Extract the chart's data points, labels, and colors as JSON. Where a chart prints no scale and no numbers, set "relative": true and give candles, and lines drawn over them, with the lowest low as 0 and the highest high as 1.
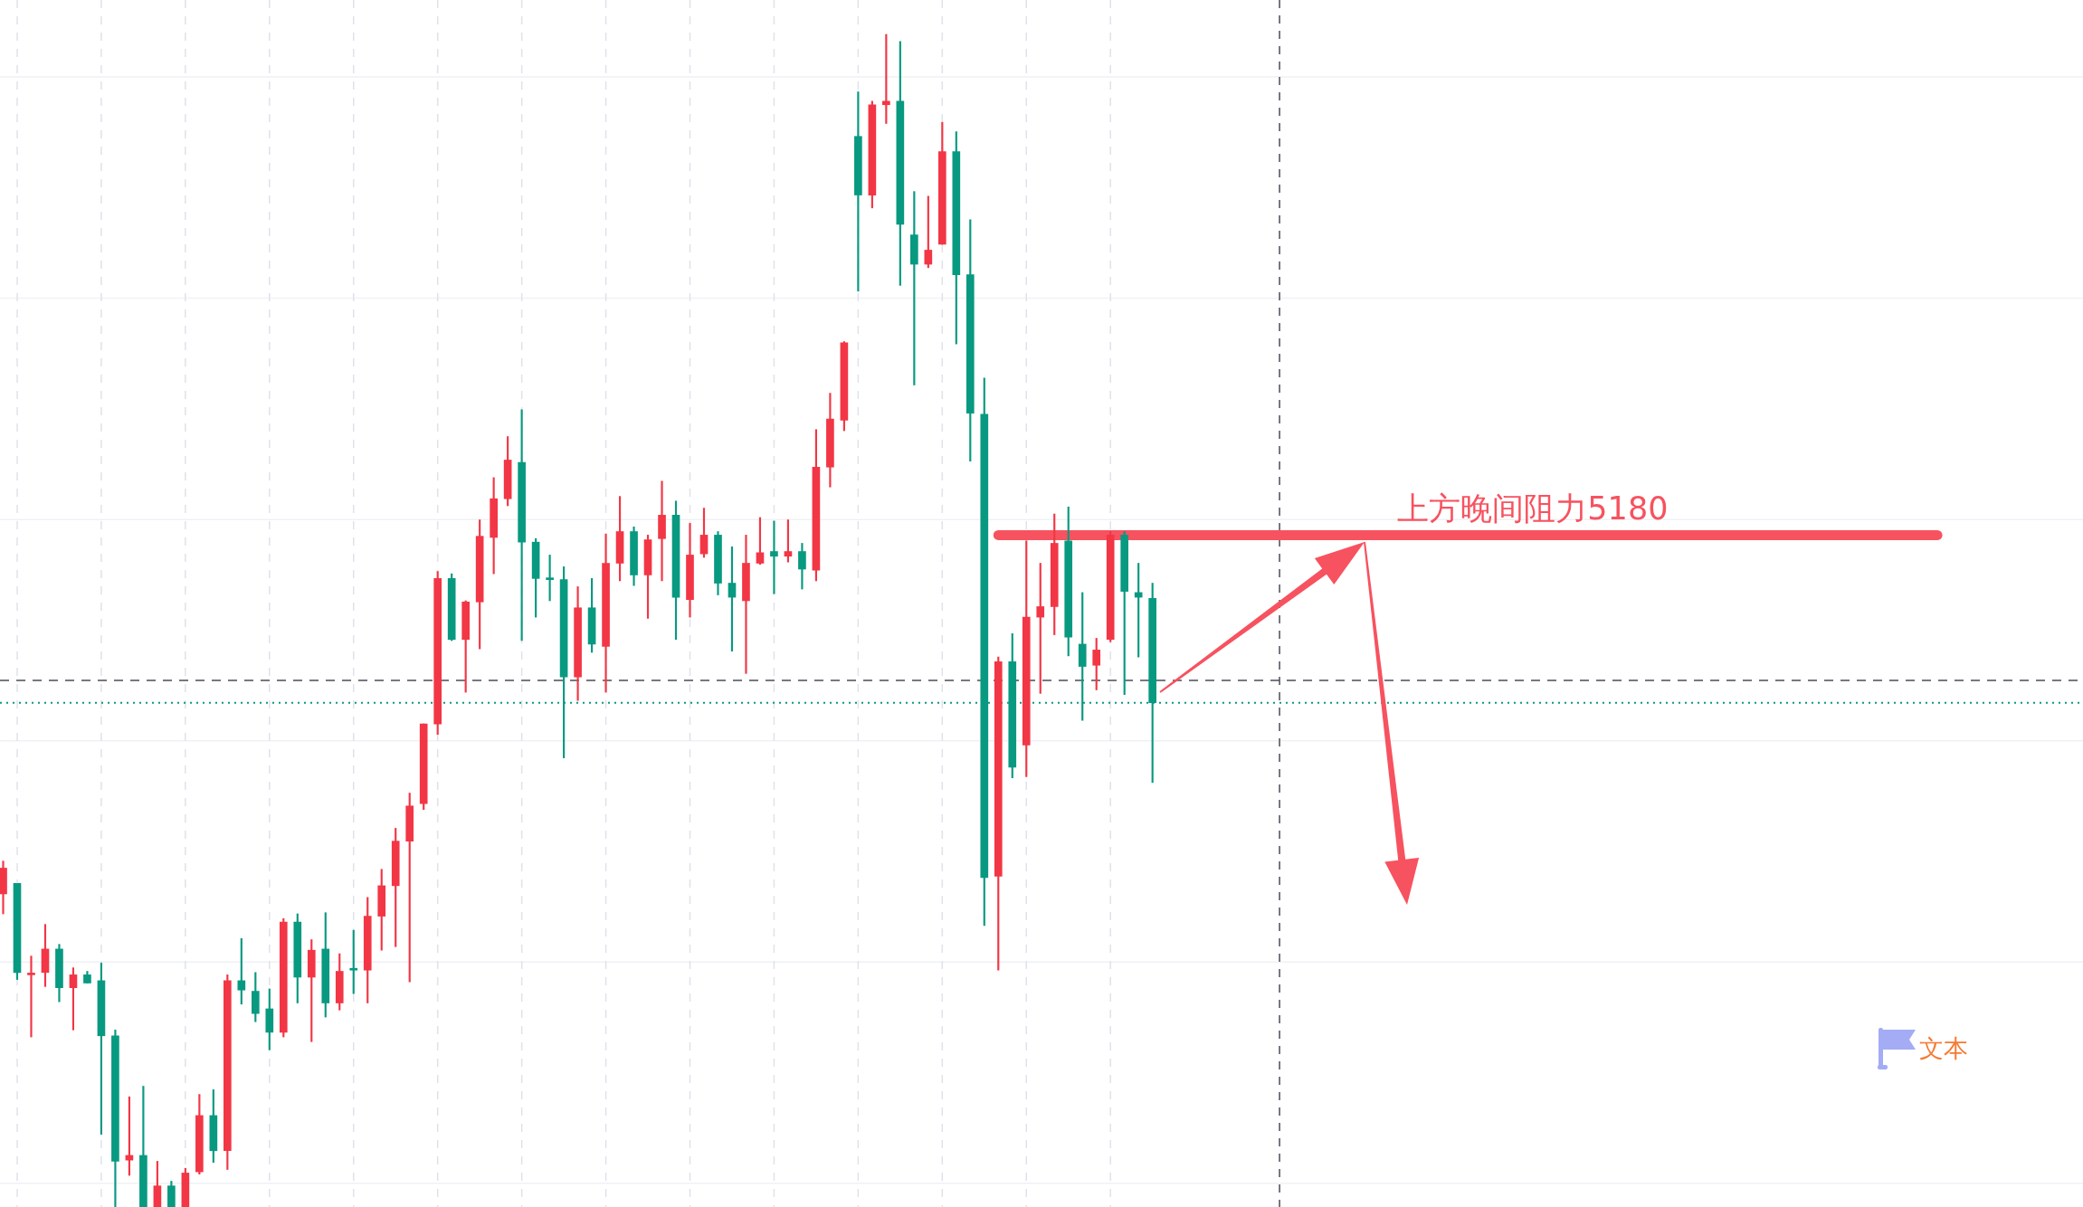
{
  "chart_data": {
    "type": "candlestick",
    "relative": true,
    "tick_labels": false,
    "grid": true,
    "categories": [
      null,
      null,
      null,
      null,
      null,
      null,
      null,
      null,
      null,
      null,
      null,
      null,
      null,
      null,
      null,
      null,
      null,
      null,
      null,
      null,
      null,
      null,
      null,
      null,
      null,
      null,
      null,
      null,
      null,
      null,
      null,
      null,
      null,
      null,
      null,
      null,
      null,
      null,
      null,
      null,
      null,
      null,
      null,
      null,
      null,
      null,
      null,
      null,
      null,
      null,
      null,
      null,
      null,
      null,
      null,
      null,
      null,
      null,
      null,
      null,
      null,
      null,
      null,
      null,
      null,
      null,
      null,
      null,
      null,
      null,
      null,
      null,
      null,
      null,
      null,
      null,
      null,
      null,
      null,
      null,
      null,
      null,
      null,
      null,
      null,
      null,
      null,
      null,
      null,
      null,
      null,
      null,
      null,
      null,
      null,
      null,
      null,
      null,
      null,
      null,
      null,
      null,
      null,
      null,
      null,
      null,
      null,
      null,
      null,
      null,
      null,
      null,
      null,
      null,
      null,
      null,
      null,
      null,
      null,
      null,
      null,
      null,
      null,
      null,
      null,
      null,
      null,
      null,
      null,
      null,
      null,
      null,
      null,
      null,
      null,
      null,
      null,
      null,
      null,
      null,
      null,
      null,
      null,
      null,
      null,
      null,
      null,
      null,
      null
    ],
    "series": [
      {
        "type": "candlestick",
        "ohlc": [
          [
            0.267,
            0.295,
            0.25,
            0.289
          ],
          [
            0.276,
            0.276,
            0.194,
            0.2
          ],
          [
            0.198,
            0.214,
            0.145,
            0.199
          ],
          [
            0.2,
            0.241,
            0.188,
            0.22
          ],
          [
            0.22,
            0.224,
            0.175,
            0.187
          ],
          [
            0.187,
            0.204,
            0.151,
            0.198
          ],
          [
            0.198,
            0.201,
            0.191,
            0.191
          ],
          [
            0.193,
            0.208,
            0.062,
            0.146
          ],
          [
            0.146,
            0.151,
            0,
            0.039
          ],
          [
            0.04,
            0.094,
            0.027,
            0.044
          ],
          [
            0.044,
            0.103,
            0,
            0
          ],
          [
            0,
            0.039,
            0,
            0.018
          ],
          [
            0.018,
            0.022,
            0,
            0
          ],
          [
            0,
            0.033,
            0,
            0.029
          ],
          [
            0.03,
            0.096,
            0.028,
            0.078
          ],
          [
            0.078,
            0.1,
            0.038,
            0.048
          ],
          [
            0.048,
            0.198,
            0.032,
            0.193
          ],
          [
            0.193,
            0.229,
            0.173,
            0.185
          ],
          [
            0.184,
            0.2,
            0.158,
            0.165
          ],
          [
            0.169,
            0.186,
            0.134,
            0.149
          ],
          [
            0.149,
            0.246,
            0.145,
            0.243
          ],
          [
            0.243,
            0.25,
            0.174,
            0.196
          ],
          [
            0.196,
            0.228,
            0.141,
            0.219
          ],
          [
            0.22,
            0.251,
            0.162,
            0.174
          ],
          [
            0.174,
            0.216,
            0.168,
            0.201
          ],
          [
            0.203,
            0.236,
            0.182,
            0.202
          ],
          [
            0.202,
            0.264,
            0.174,
            0.248
          ],
          [
            0.248,
            0.288,
            0.219,
            0.274
          ],
          [
            0.274,
            0.323,
            0.222,
            0.312
          ],
          [
            0.312,
            0.353,
            0.192,
            0.342
          ],
          [
            0.344,
            0.412,
            0.339,
            0.412
          ],
          [
            0.412,
            0.542,
            0.403,
            0.536
          ],
          [
            0.536,
            0.54,
            0.483,
            0.484
          ],
          [
            0.484,
            0.517,
            0.439,
            0.516
          ],
          [
            0.516,
            0.586,
            0.476,
            0.572
          ],
          [
            0.571,
            0.622,
            0.54,
            0.604
          ],
          [
            0.604,
            0.657,
            0.598,
            0.637
          ],
          [
            0.635,
            0.68,
            0.483,
            0.567
          ],
          [
            0.567,
            0.57,
            0.503,
            0.536
          ],
          [
            0.536,
            0.556,
            0.517,
            0.535
          ],
          [
            0.535,
            0.546,
            0.383,
            0.452
          ],
          [
            0.452,
            0.529,
            0.432,
            0.511
          ],
          [
            0.511,
            0.536,
            0.473,
            0.48
          ],
          [
            0.478,
            0.574,
            0.439,
            0.549
          ],
          [
            0.549,
            0.606,
            0.534,
            0.576
          ],
          [
            0.576,
            0.58,
            0.53,
            0.539
          ],
          [
            0.539,
            0.573,
            0.502,
            0.569
          ],
          [
            0.57,
            0.619,
            0.534,
            0.59
          ],
          [
            0.59,
            0.602,
            0.484,
            0.52
          ],
          [
            0.518,
            0.583,
            0.503,
            0.556
          ],
          [
            0.557,
            0.596,
            0.554,
            0.573
          ],
          [
            0.573,
            0.576,
            0.522,
            0.532
          ],
          [
            0.532,
            0.563,
            0.474,
            0.52
          ],
          [
            0.517,
            0.573,
            0.455,
            0.549
          ],
          [
            0.549,
            0.588,
            0.548,
            0.558
          ],
          [
            0.559,
            0.585,
            0.523,
            0.555
          ],
          [
            0.555,
            0.586,
            0.55,
            0.559
          ],
          [
            0.559,
            0.566,
            0.527,
            0.544
          ],
          [
            0.543,
            0.663,
            0.534,
            0.631
          ],
          [
            0.631,
            0.694,
            0.614,
            0.672
          ],
          [
            0.671,
            0.738,
            0.662,
            0.737
          ],
          [
            0.913,
            0.951,
            0.781,
            0.863
          ],
          [
            0.863,
            0.943,
            0.852,
            0.94
          ],
          [
            0.94,
            1,
            0.924,
            0.943
          ],
          [
            0.943,
            0.994,
            0.786,
            0.838
          ],
          [
            0.829,
            0.866,
            0.701,
            0.804
          ],
          [
            0.804,
            0.862,
            0.801,
            0.816
          ],
          [
            0.821,
            0.925,
            0.821,
            0.9
          ],
          [
            0.9,
            0.917,
            0.736,
            0.795
          ],
          [
            0.795,
            0.842,
            0.636,
            0.677
          ],
          [
            0.676,
            0.707,
            0.24,
            0.281
          ],
          [
            0.282,
            0.469,
            0.202,
            0.465
          ],
          [
            0.465,
            0.489,
            0.366,
            0.375
          ],
          [
            0.394,
            0.568,
            0.367,
            0.503
          ],
          [
            0.503,
            0.549,
            0.438,
            0.512
          ],
          [
            0.512,
            0.591,
            0.488,
            0.566
          ],
          [
            0.568,
            0.597,
            0.47,
            0.486
          ],
          [
            0.48,
            0.524,
            0.415,
            0.461
          ],
          [
            0.462,
            0.485,
            0.441,
            0.475
          ],
          [
            0.484,
            0.576,
            0.482,
            0.573
          ],
          [
            0.573,
            0.576,
            0.437,
            0.525
          ],
          [
            0.524,
            0.549,
            0.469,
            0.52
          ],
          [
            0.519,
            0.532,
            0.362,
            0.43
          ],
          null,
          null,
          null,
          null,
          null,
          null,
          null,
          null,
          null,
          null,
          null,
          null,
          null,
          null,
          null,
          null,
          null,
          null,
          null,
          null,
          null,
          null,
          null,
          null,
          null,
          null,
          null,
          null,
          null,
          null,
          null,
          null,
          null,
          null,
          null,
          null,
          null,
          null,
          null,
          null,
          null,
          null,
          null,
          null,
          null,
          null,
          null,
          null,
          null,
          null,
          null,
          null,
          null,
          null,
          null,
          null,
          null,
          null,
          null,
          null,
          null,
          null,
          null,
          null,
          null,
          null
        ],
        "colors": [
          "#f23645",
          "#089981",
          "#f23645",
          "#f23645",
          "#089981",
          "#f23645",
          "#089981",
          "#089981",
          "#089981",
          "#f23645",
          "#089981",
          "#f23645",
          "#089981",
          "#f23645",
          "#f23645",
          "#089981",
          "#f23645",
          "#089981",
          "#089981",
          "#089981",
          "#f23645",
          "#089981",
          "#f23645",
          "#089981",
          "#f23645",
          "#089981",
          "#f23645",
          "#f23645",
          "#f23645",
          "#f23645",
          "#f23645",
          "#f23645",
          "#089981",
          "#f23645",
          "#f23645",
          "#f23645",
          "#f23645",
          "#089981",
          "#089981",
          "#089981",
          "#089981",
          "#f23645",
          "#089981",
          "#f23645",
          "#f23645",
          "#089981",
          "#f23645",
          "#f23645",
          "#089981",
          "#f23645",
          "#f23645",
          "#089981",
          "#089981",
          "#f23645",
          "#f23645",
          "#089981",
          "#f23645",
          "#089981",
          "#f23645",
          "#f23645",
          "#f23645",
          "#089981",
          "#f23645",
          "#f23645",
          "#089981",
          "#089981",
          "#f23645",
          "#f23645",
          "#089981",
          "#089981",
          "#089981",
          "#f23645",
          "#089981",
          "#f23645",
          "#f23645",
          "#f23645",
          "#089981",
          "#089981",
          "#f23645",
          "#f23645",
          "#089981",
          "#089981",
          "#089981",
          null,
          null,
          null,
          null,
          null,
          null,
          null,
          null,
          null,
          null,
          null,
          null,
          null,
          null,
          null,
          null,
          null,
          null,
          null,
          null,
          null,
          null,
          null,
          null,
          null,
          null,
          null,
          null,
          null,
          null,
          null,
          null,
          null,
          null,
          null,
          null,
          null,
          null,
          null,
          null,
          null,
          null,
          null,
          null,
          null,
          null,
          null,
          null,
          null,
          null,
          null,
          null,
          null,
          null,
          null,
          null,
          null,
          null,
          null,
          null,
          null,
          null,
          null,
          null,
          null,
          null
        ]
      },
      {
        "type": "line",
        "name": "上方晚间阻力5180",
        "color": "#f7525f",
        "values": [
          null,
          null,
          null,
          null,
          null,
          null,
          null,
          null,
          null,
          null,
          null,
          null,
          null,
          null,
          null,
          null,
          null,
          null,
          null,
          null,
          null,
          null,
          null,
          null,
          null,
          null,
          null,
          null,
          null,
          null,
          null,
          null,
          null,
          null,
          null,
          null,
          null,
          null,
          null,
          null,
          null,
          null,
          null,
          null,
          null,
          null,
          null,
          null,
          null,
          null,
          null,
          null,
          null,
          null,
          null,
          null,
          null,
          null,
          null,
          null,
          null,
          null,
          null,
          null,
          null,
          null,
          null,
          null,
          null,
          null,
          null,
          0.573,
          0.573,
          0.573,
          0.573,
          0.573,
          0.573,
          0.573,
          0.573,
          0.573,
          0.573,
          0.573,
          0.573,
          0.573,
          0.573,
          0.573,
          0.573,
          0.573,
          0.573,
          0.573,
          0.573,
          0.573,
          0.573,
          0.573,
          0.573,
          0.573,
          0.573,
          0.573,
          0.573,
          0.573,
          0.573,
          0.573,
          0.573,
          0.573,
          0.573,
          0.573,
          0.573,
          0.573,
          0.573,
          0.573,
          0.573,
          0.573,
          0.573,
          0.573,
          0.573,
          0.573,
          0.573,
          0.573,
          0.573,
          0.573,
          0.573,
          0.573,
          0.573,
          0.573,
          0.573,
          0.573,
          0.573,
          0.573,
          0.573,
          0.573,
          0.573,
          0.573,
          0.573,
          0.573,
          0.573,
          0.573,
          0.573,
          0.573,
          0.573,
          null,
          null,
          null,
          null,
          null,
          null,
          null,
          null,
          null,
          null
        ]
      }
    ],
    "ref_lines": [
      {
        "axis": "y",
        "value": 0.449,
        "color": "#4a4d57",
        "line_style": "dashed"
      },
      {
        "axis": "y",
        "value": 0.43,
        "color": "#089981",
        "line_style": "dotted"
      }
    ],
    "annotations": [
      "文本"
    ]
  }
}
